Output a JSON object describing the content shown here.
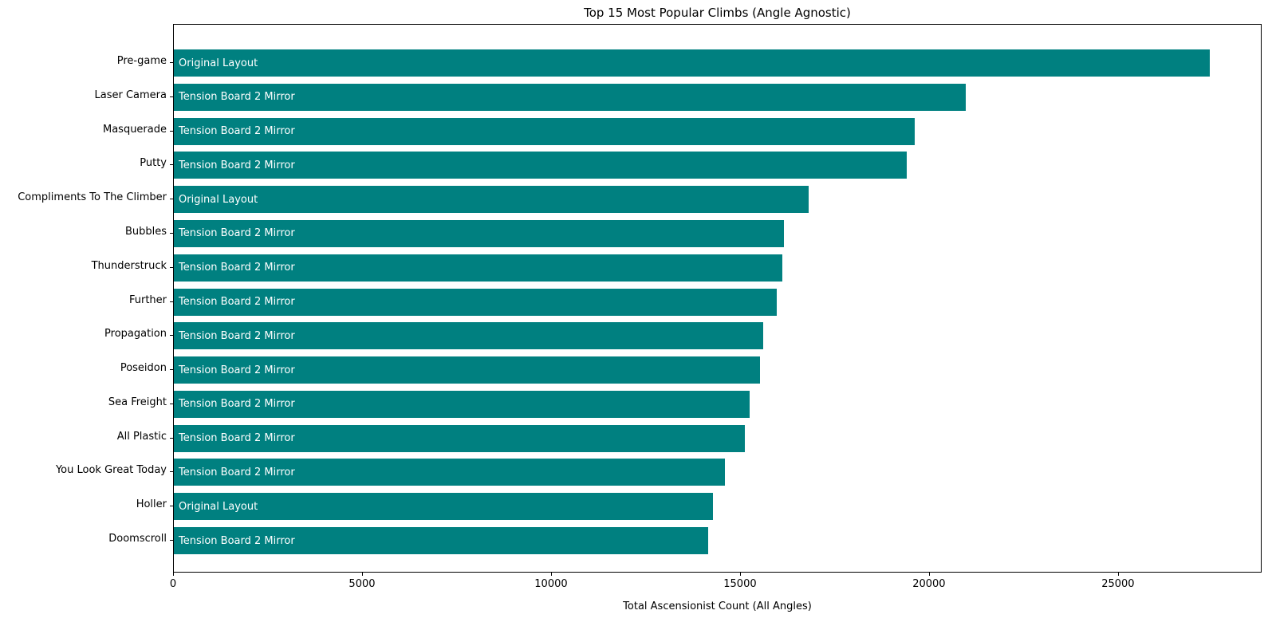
{
  "title": "Top 15 Most Popular Climbs (Angle Agnostic)",
  "chart_data": {
    "type": "bar",
    "orientation": "horizontal",
    "title": "Top 15 Most Popular Climbs (Angle Agnostic)",
    "xlabel": "Total Ascensionist Count (All Angles)",
    "ylabel": "",
    "categories": [
      "Pre-game",
      "Laser Camera",
      "Masquerade",
      "Putty",
      "Compliments To The Climber",
      "Bubbles",
      "Thunderstruck",
      "Further",
      "Propagation",
      "Poseidon",
      "Sea Freight",
      "All Plastic",
      "You Look Great Today",
      "Holler",
      "Doomscroll"
    ],
    "values": [
      27400,
      20950,
      19600,
      19400,
      16800,
      16150,
      16100,
      15950,
      15590,
      15510,
      15240,
      15100,
      14570,
      14260,
      14140
    ],
    "bar_labels": [
      "Original Layout",
      "Tension Board 2 Mirror",
      "Tension Board 2 Mirror",
      "Tension Board 2 Mirror",
      "Original Layout",
      "Tension Board 2 Mirror",
      "Tension Board 2 Mirror",
      "Tension Board 2 Mirror",
      "Tension Board 2 Mirror",
      "Tension Board 2 Mirror",
      "Tension Board 2 Mirror",
      "Tension Board 2 Mirror",
      "Tension Board 2 Mirror",
      "Original Layout",
      "Tension Board 2 Mirror"
    ],
    "x_ticks": [
      0,
      5000,
      10000,
      15000,
      20000,
      25000
    ],
    "xlim": [
      0,
      28800
    ],
    "grid": false,
    "bar_color": "#008080",
    "bar_label_color": "#ffffff",
    "text_color": "#000000",
    "background_color": "#ffffff"
  }
}
